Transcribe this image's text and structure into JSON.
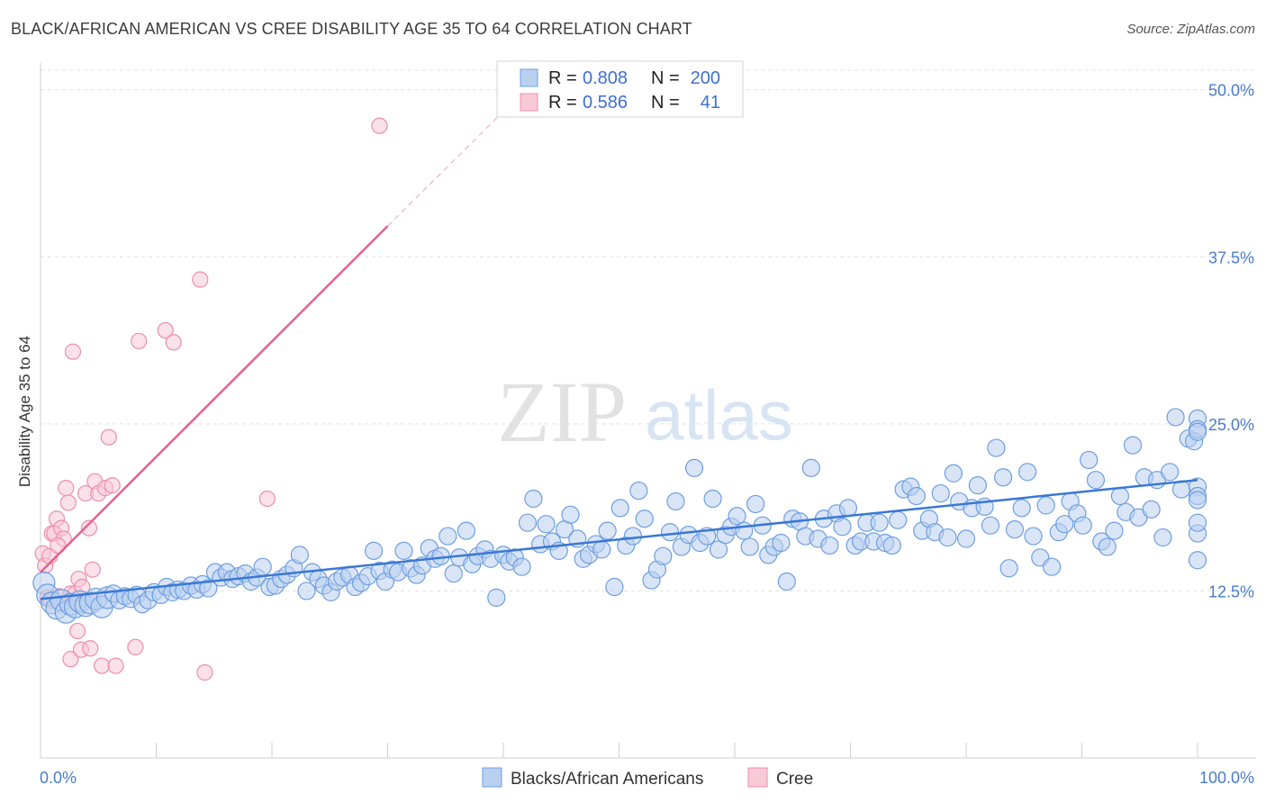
{
  "title": "BLACK/AFRICAN AMERICAN VS CREE DISABILITY AGE 35 TO 64 CORRELATION CHART",
  "source": "Source: ZipAtlas.com",
  "watermark": {
    "part1": "ZIP",
    "part2": "atlas"
  },
  "colors": {
    "blue": "#6d9ee0",
    "blue_fill": "#b9d0f1",
    "blue_line": "#3a78d4",
    "pink": "#ec8eab",
    "pink_fill": "#f8c9d7",
    "pink_line": "#e4628d",
    "tick_text": "#4a7cc9"
  },
  "legend": {
    "r_label": "R =",
    "n_label": "N =",
    "rows": [
      {
        "r": "0.808",
        "n": "200"
      },
      {
        "r": "0.586",
        "n": "41"
      }
    ]
  },
  "bottom_legend": [
    "Blacks/African Americans",
    "Cree"
  ],
  "chart_data": {
    "type": "scatter",
    "title": "BLACK/AFRICAN AMERICAN VS CREE DISABILITY AGE 35 TO 64 CORRELATION CHART",
    "xlabel": "",
    "ylabel": "Disability Age 35 to 64",
    "x_ticks": [
      "0.0%",
      "100.0%"
    ],
    "y_ticks": [
      "12.5%",
      "25.0%",
      "37.5%",
      "50.0%"
    ],
    "y_tick_values": [
      12.5,
      25.0,
      37.5,
      50.0
    ],
    "xlim": [
      0,
      100
    ],
    "ylim": [
      0,
      52
    ],
    "grid": "horizontal dashed",
    "legend_position": "top-center",
    "series": [
      {
        "name": "Blacks/African Americans",
        "r": 0.808,
        "n": 200,
        "trend": {
          "x": [
            0,
            100
          ],
          "y": [
            11.9,
            20.8
          ]
        },
        "points": [
          [
            0.3,
            13.1
          ],
          [
            0.6,
            12.2
          ],
          [
            1.0,
            11.6
          ],
          [
            1.4,
            11.2
          ],
          [
            1.8,
            11.8
          ],
          [
            2.2,
            10.9
          ],
          [
            2.6,
            11.5
          ],
          [
            3.0,
            11.3
          ],
          [
            3.4,
            11.7
          ],
          [
            3.9,
            11.4
          ],
          [
            4.3,
            11.6
          ],
          [
            4.8,
            11.9
          ],
          [
            5.3,
            11.3
          ],
          [
            5.8,
            12.0
          ],
          [
            6.3,
            12.3
          ],
          [
            6.8,
            11.8
          ],
          [
            7.3,
            12.1
          ],
          [
            7.8,
            11.9
          ],
          [
            8.3,
            12.2
          ],
          [
            8.8,
            11.5
          ],
          [
            9.3,
            11.8
          ],
          [
            9.8,
            12.4
          ],
          [
            10.4,
            12.2
          ],
          [
            10.9,
            12.8
          ],
          [
            11.4,
            12.4
          ],
          [
            11.9,
            12.6
          ],
          [
            12.4,
            12.5
          ],
          [
            13.0,
            12.9
          ],
          [
            13.5,
            12.6
          ],
          [
            14.0,
            13.0
          ],
          [
            14.5,
            12.7
          ],
          [
            15.1,
            13.9
          ],
          [
            15.6,
            13.5
          ],
          [
            16.1,
            13.9
          ],
          [
            16.6,
            13.4
          ],
          [
            17.1,
            13.6
          ],
          [
            17.7,
            13.8
          ],
          [
            18.2,
            13.2
          ],
          [
            18.7,
            13.5
          ],
          [
            19.2,
            14.3
          ],
          [
            19.8,
            12.8
          ],
          [
            20.3,
            12.9
          ],
          [
            20.8,
            13.4
          ],
          [
            21.3,
            13.7
          ],
          [
            21.9,
            14.2
          ],
          [
            22.4,
            15.2
          ],
          [
            23.0,
            12.5
          ],
          [
            23.5,
            13.9
          ],
          [
            24.0,
            13.4
          ],
          [
            24.5,
            12.9
          ],
          [
            25.1,
            12.4
          ],
          [
            25.6,
            13.2
          ],
          [
            26.1,
            13.5
          ],
          [
            26.7,
            13.7
          ],
          [
            27.2,
            12.8
          ],
          [
            27.7,
            13.1
          ],
          [
            28.3,
            13.6
          ],
          [
            28.8,
            15.5
          ],
          [
            29.3,
            14.0
          ],
          [
            29.8,
            13.2
          ],
          [
            30.4,
            14.1
          ],
          [
            30.9,
            13.9
          ],
          [
            31.4,
            15.5
          ],
          [
            32.0,
            14.2
          ],
          [
            32.5,
            13.7
          ],
          [
            33.0,
            14.4
          ],
          [
            33.6,
            15.7
          ],
          [
            34.1,
            14.9
          ],
          [
            34.6,
            15.1
          ],
          [
            35.2,
            16.6
          ],
          [
            35.7,
            13.8
          ],
          [
            36.2,
            15.0
          ],
          [
            36.8,
            17.0
          ],
          [
            37.3,
            14.5
          ],
          [
            37.8,
            15.1
          ],
          [
            38.4,
            15.6
          ],
          [
            38.9,
            14.9
          ],
          [
            39.4,
            12.0
          ],
          [
            40.0,
            15.2
          ],
          [
            40.5,
            14.7
          ],
          [
            41.0,
            15.0
          ],
          [
            41.6,
            14.3
          ],
          [
            42.1,
            17.6
          ],
          [
            42.6,
            19.4
          ],
          [
            43.2,
            16.0
          ],
          [
            43.7,
            17.5
          ],
          [
            44.2,
            16.2
          ],
          [
            44.8,
            15.5
          ],
          [
            45.3,
            17.1
          ],
          [
            45.8,
            18.2
          ],
          [
            46.4,
            16.4
          ],
          [
            46.9,
            14.9
          ],
          [
            47.4,
            15.2
          ],
          [
            48.0,
            16.0
          ],
          [
            48.5,
            15.6
          ],
          [
            49.0,
            17.0
          ],
          [
            49.6,
            12.8
          ],
          [
            50.1,
            18.7
          ],
          [
            50.6,
            15.9
          ],
          [
            51.2,
            16.6
          ],
          [
            51.7,
            20.0
          ],
          [
            52.2,
            17.9
          ],
          [
            52.8,
            13.3
          ],
          [
            53.3,
            14.1
          ],
          [
            53.8,
            15.1
          ],
          [
            54.4,
            16.9
          ],
          [
            54.9,
            19.2
          ],
          [
            55.4,
            15.8
          ],
          [
            56.0,
            16.7
          ],
          [
            56.5,
            21.7
          ],
          [
            57.0,
            16.1
          ],
          [
            57.6,
            16.6
          ],
          [
            58.1,
            19.4
          ],
          [
            58.6,
            15.6
          ],
          [
            59.2,
            16.7
          ],
          [
            59.7,
            17.3
          ],
          [
            60.2,
            18.1
          ],
          [
            60.8,
            17.0
          ],
          [
            61.3,
            15.8
          ],
          [
            61.8,
            19.0
          ],
          [
            62.4,
            17.4
          ],
          [
            62.9,
            15.2
          ],
          [
            63.4,
            15.8
          ],
          [
            64.0,
            16.1
          ],
          [
            64.5,
            13.2
          ],
          [
            65.0,
            17.9
          ],
          [
            65.6,
            17.7
          ],
          [
            66.1,
            16.6
          ],
          [
            66.6,
            21.7
          ],
          [
            67.2,
            16.4
          ],
          [
            67.7,
            17.9
          ],
          [
            68.2,
            15.9
          ],
          [
            68.8,
            18.3
          ],
          [
            69.3,
            17.3
          ],
          [
            69.8,
            18.7
          ],
          [
            70.4,
            15.9
          ],
          [
            70.9,
            16.2
          ],
          [
            71.4,
            17.6
          ],
          [
            72.0,
            16.2
          ],
          [
            72.5,
            17.6
          ],
          [
            73.0,
            16.1
          ],
          [
            73.6,
            15.9
          ],
          [
            74.1,
            17.8
          ],
          [
            74.6,
            20.1
          ],
          [
            75.2,
            20.3
          ],
          [
            75.7,
            19.6
          ],
          [
            76.2,
            17.0
          ],
          [
            76.8,
            17.9
          ],
          [
            77.3,
            16.9
          ],
          [
            77.8,
            19.8
          ],
          [
            78.4,
            16.5
          ],
          [
            78.9,
            21.3
          ],
          [
            79.4,
            19.2
          ],
          [
            80.0,
            16.4
          ],
          [
            80.5,
            18.7
          ],
          [
            81.0,
            20.4
          ],
          [
            81.6,
            18.8
          ],
          [
            82.1,
            17.4
          ],
          [
            82.6,
            23.2
          ],
          [
            83.2,
            21.0
          ],
          [
            83.7,
            14.2
          ],
          [
            84.2,
            17.1
          ],
          [
            84.8,
            18.7
          ],
          [
            85.3,
            21.4
          ],
          [
            85.8,
            16.6
          ],
          [
            86.4,
            15.0
          ],
          [
            86.9,
            18.9
          ],
          [
            87.4,
            14.3
          ],
          [
            88.0,
            16.9
          ],
          [
            88.5,
            17.5
          ],
          [
            89.0,
            19.2
          ],
          [
            89.6,
            18.3
          ],
          [
            90.1,
            17.4
          ],
          [
            90.6,
            22.3
          ],
          [
            91.2,
            20.8
          ],
          [
            91.7,
            16.2
          ],
          [
            92.2,
            15.8
          ],
          [
            92.8,
            17.0
          ],
          [
            93.3,
            19.6
          ],
          [
            93.8,
            18.4
          ],
          [
            94.4,
            23.4
          ],
          [
            94.9,
            18.0
          ],
          [
            95.4,
            21.0
          ],
          [
            96.0,
            18.6
          ],
          [
            96.5,
            20.8
          ],
          [
            97.0,
            16.5
          ],
          [
            97.6,
            21.4
          ],
          [
            98.1,
            25.5
          ],
          [
            98.6,
            20.1
          ],
          [
            99.2,
            23.9
          ],
          [
            99.7,
            23.7
          ],
          [
            100.2,
            20.3
          ],
          [
            100.7,
            14.8
          ],
          [
            101.3,
            25.4
          ],
          [
            101.8,
            24.6
          ],
          [
            102.3,
            19.6
          ],
          [
            102.9,
            24.4
          ],
          [
            103.4,
            16.8
          ],
          [
            103.9,
            17.6
          ],
          [
            104.5,
            19.3
          ]
        ]
      },
      {
        "name": "Cree",
        "r": 0.586,
        "n": 41,
        "trend": {
          "x": [
            0,
            30
          ],
          "y": [
            13.9,
            39.8
          ]
        },
        "trend_extension": {
          "x": [
            30,
            40.5
          ],
          "y": [
            39.8,
            48.8
          ]
        },
        "points": [
          [
            0.2,
            15.3
          ],
          [
            0.4,
            14.4
          ],
          [
            0.6,
            12.0
          ],
          [
            0.8,
            15.1
          ],
          [
            0.9,
            11.8
          ],
          [
            1.0,
            16.8
          ],
          [
            1.2,
            16.8
          ],
          [
            1.4,
            17.9
          ],
          [
            1.6,
            12.1
          ],
          [
            1.8,
            17.2
          ],
          [
            2.0,
            16.4
          ],
          [
            2.2,
            20.2
          ],
          [
            2.4,
            19.1
          ],
          [
            2.6,
            12.3
          ],
          [
            2.8,
            30.4
          ],
          [
            3.0,
            12.3
          ],
          [
            3.3,
            13.4
          ],
          [
            3.6,
            12.8
          ],
          [
            3.9,
            19.8
          ],
          [
            4.2,
            17.2
          ],
          [
            4.5,
            14.1
          ],
          [
            4.7,
            20.7
          ],
          [
            5.0,
            19.8
          ],
          [
            5.3,
            6.9
          ],
          [
            5.6,
            20.2
          ],
          [
            5.9,
            24.0
          ],
          [
            6.2,
            20.4
          ],
          [
            6.5,
            6.9
          ],
          [
            8.2,
            8.3
          ],
          [
            8.5,
            31.2
          ],
          [
            10.8,
            32.0
          ],
          [
            11.5,
            31.1
          ],
          [
            13.8,
            35.8
          ],
          [
            14.2,
            6.4
          ],
          [
            19.6,
            19.4
          ],
          [
            29.3,
            47.3
          ],
          [
            2.6,
            7.4
          ],
          [
            3.2,
            9.5
          ],
          [
            3.5,
            8.1
          ],
          [
            4.3,
            8.2
          ],
          [
            1.5,
            15.9
          ]
        ]
      }
    ]
  }
}
